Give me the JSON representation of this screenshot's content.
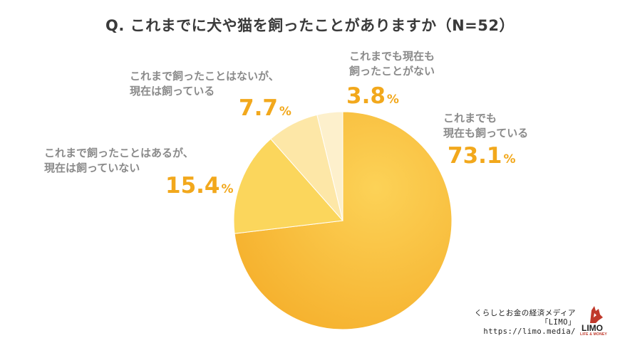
{
  "title": "Q. これまでに犬や猫を飼ったことがありますか（N=52）",
  "chart_data": {
    "type": "pie",
    "title": "Q. これまでに犬や猫を飼ったことがありますか（N=52）",
    "slices": [
      {
        "label_line1": "これまでも",
        "label_line2": "現在も飼っている",
        "value": "73.1",
        "unit": "%",
        "color": "#f7b82c"
      },
      {
        "label_line1": "これまで飼ったことはあるが、",
        "label_line2": "現在は飼っていない",
        "value": "15.4",
        "unit": "%",
        "color": "#fbd65c"
      },
      {
        "label_line1": "これまで飼ったことはないが、",
        "label_line2": "現在は飼っている",
        "value": "7.7",
        "unit": "%",
        "color": "#fde7a7"
      },
      {
        "label_line1": "これまでも現在も",
        "label_line2": "飼ったことがない",
        "value": "3.8",
        "unit": "%",
        "color": "#fdf0cc"
      }
    ],
    "start_angle_deg": 0,
    "direction": "clockwise"
  },
  "brand": {
    "line1": "くらしとお金の経済メディア",
    "line2": "「LIMO」",
    "url": "https://limo.media/",
    "logo_text": "LIMO",
    "logo_tagline": "LIFE & MONEY"
  }
}
